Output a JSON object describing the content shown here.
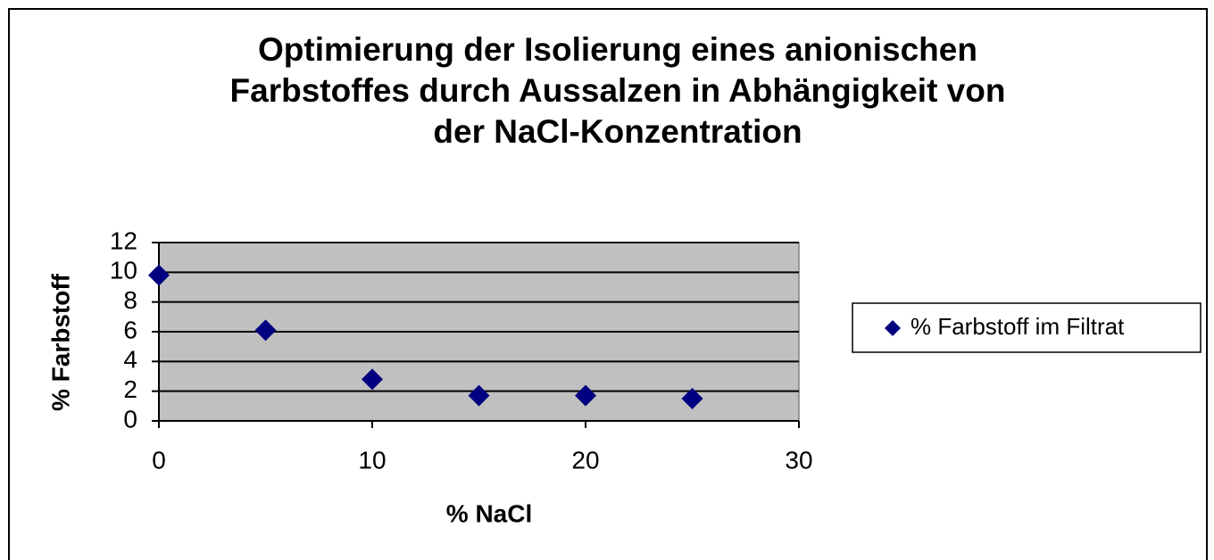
{
  "chart_data": {
    "type": "scatter",
    "title": [
      "Optimierung der Isolierung  eines anionischen",
      "Farbstoffes durch Aussalzen in Abhängigkeit  von",
      "der NaCl-Konzentration"
    ],
    "x_label": "% NaCl",
    "y_label": "% Farbstoff",
    "series": [
      {
        "name": "% Farbstoff im Filtrat",
        "color": "#000080",
        "x": [
          0,
          5,
          10,
          15,
          20,
          25
        ],
        "values": [
          9.8,
          6.1,
          2.8,
          1.7,
          1.7,
          1.5
        ]
      }
    ],
    "xlim": [
      0,
      30
    ],
    "xticks": [
      0,
      10,
      20,
      30
    ],
    "ylim": [
      0,
      12
    ],
    "yticks": [
      0,
      2,
      4,
      6,
      8,
      10,
      12
    ],
    "grid": true,
    "plot_background": "#c0c0c0",
    "legend": "right"
  }
}
